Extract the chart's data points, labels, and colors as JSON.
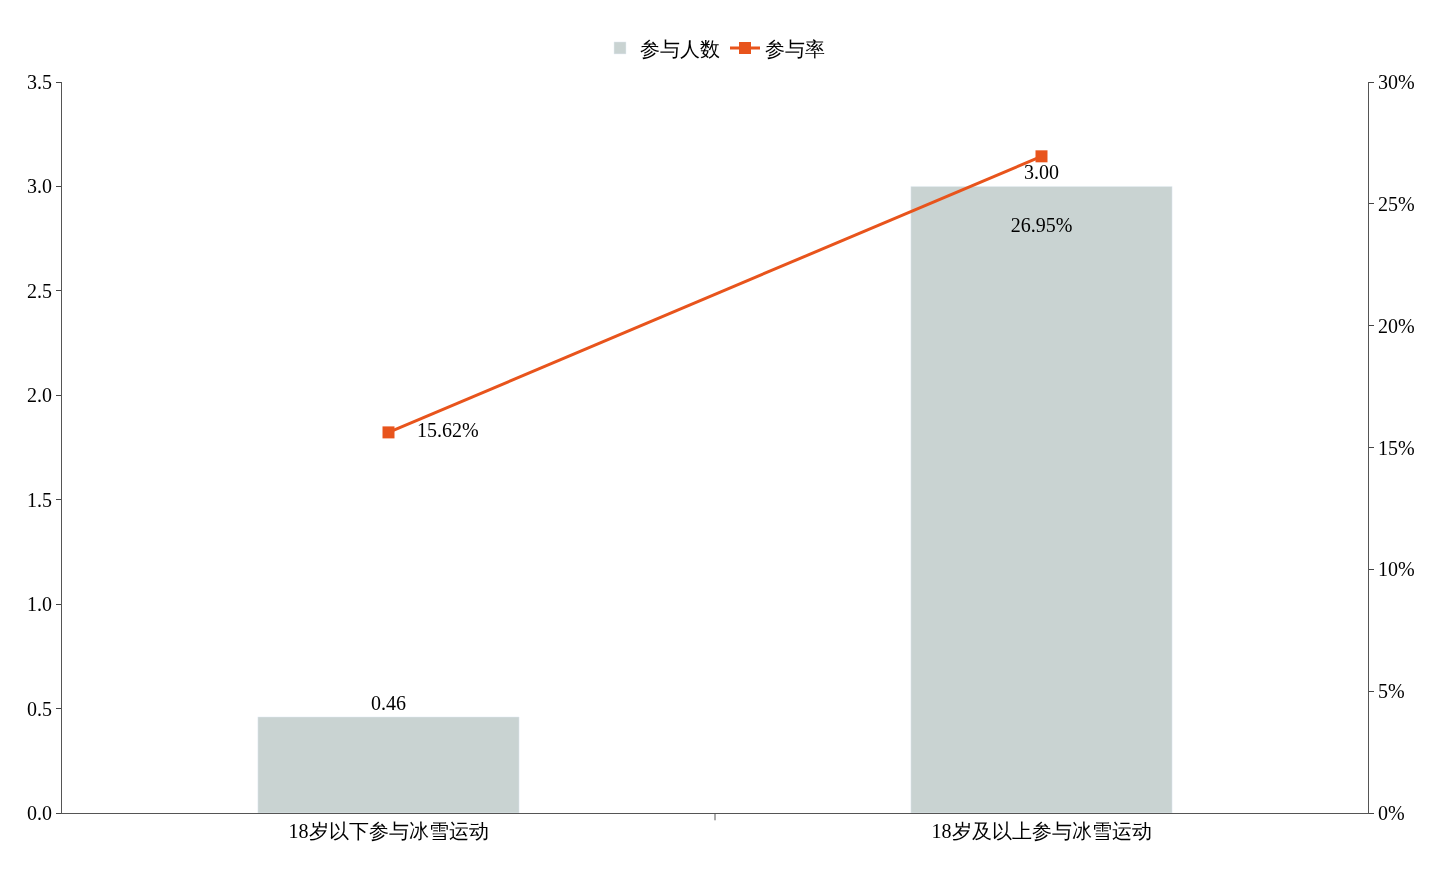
{
  "chart_data": {
    "type": "bar",
    "categories": [
      "18岁以下参与冰雪运动",
      "18岁及以上参与冰雪运动"
    ],
    "series": [
      {
        "name": "参与人数",
        "color": "#c9d3d2",
        "values": [
          0.46,
          3.0
        ],
        "value_labels": [
          "0.46",
          "3.00"
        ]
      },
      {
        "name": "参与率",
        "type": "line",
        "axis": "y2",
        "color": "#e8541c",
        "marker": "square",
        "values": [
          15.62,
          26.95
        ],
        "value_labels": [
          "15.62%",
          "26.95%"
        ]
      }
    ],
    "ylim": [
      0,
      3.5
    ],
    "yticks": [
      {
        "value": 0,
        "label": "0.0"
      },
      {
        "value": 0.5,
        "label": "0.5"
      },
      {
        "value": 1,
        "label": "1.0"
      },
      {
        "value": 1.5,
        "label": "1.5"
      },
      {
        "value": 2,
        "label": "2.0"
      },
      {
        "value": 2.5,
        "label": "2.5"
      },
      {
        "value": 3,
        "label": "3.0"
      },
      {
        "value": 3.5,
        "label": "3.5"
      }
    ],
    "y2lim": [
      0,
      30
    ],
    "y2ticks": [
      {
        "value": 0,
        "label": "0%"
      },
      {
        "value": 5,
        "label": "5%"
      },
      {
        "value": 10,
        "label": "10%"
      },
      {
        "value": 15,
        "label": "15%"
      },
      {
        "value": 20,
        "label": "20%"
      },
      {
        "value": 25,
        "label": "25%"
      },
      {
        "value": 30,
        "label": "30%"
      }
    ],
    "legend": "top"
  }
}
